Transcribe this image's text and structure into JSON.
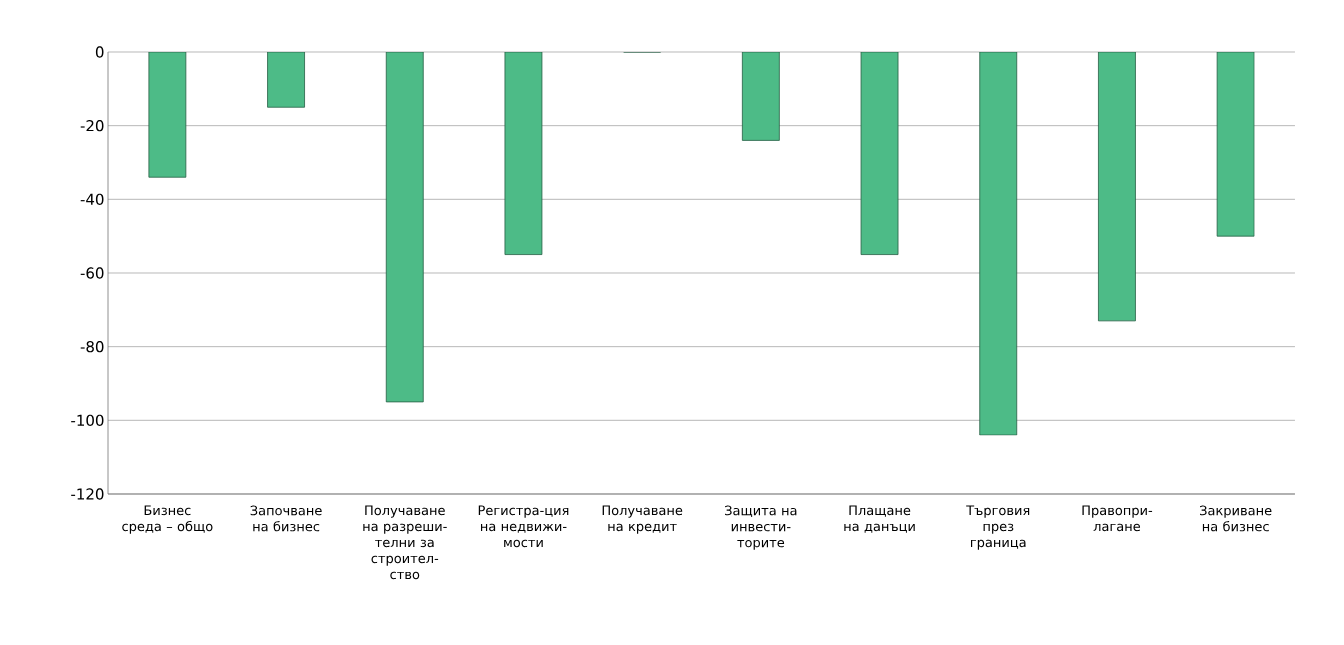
{
  "chart_data": {
    "type": "bar",
    "categories": [
      "Бизнес среда – общо",
      "Започване на бизнес",
      "Получаване на разреши-телни за строител-ство",
      "Регистра-ция на недвижи-мости",
      "Получаване на кредит",
      "Защита на инвести-торите",
      "Плащане на данъци",
      "Търговия през граница",
      "Правопри-лагане",
      "Закриване на бизнес"
    ],
    "values": [
      -34,
      -15,
      -95,
      -55,
      0,
      -24,
      -55,
      -104,
      -73,
      -50
    ],
    "color": "#4dbb87",
    "ylim": [
      -120,
      0
    ],
    "yticks": [
      -120,
      -100,
      -80,
      -60,
      -40,
      -20,
      0
    ],
    "grid": "y"
  }
}
